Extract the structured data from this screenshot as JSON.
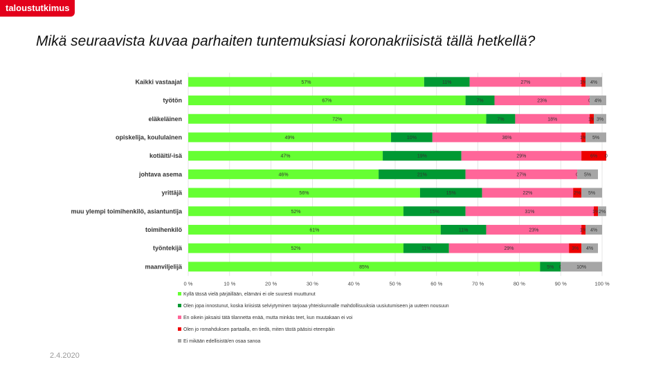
{
  "brand": "taloustutkimus",
  "date": "2.4.2020",
  "chart_data": {
    "type": "bar",
    "orientation": "horizontal",
    "stacked": true,
    "title": "Mikä seuraavista kuvaa parhaiten tuntemuksiasi koronakriisistä tällä hetkellä?",
    "categories": [
      "Kaikki vastaajat",
      "työtön",
      "eläkeläinen",
      "opiskelija, koululainen",
      "kotiäiti/-isä",
      "johtava asema",
      "yrittäjä",
      "muu ylempi toimihenkilö, asiantuntija",
      "toimihenkilö",
      "työntekijä",
      "maanviljelijä"
    ],
    "xlim": [
      0,
      100
    ],
    "xticks": [
      "0 %",
      "10 %",
      "20 %",
      "30 %",
      "40 %",
      "50 %",
      "60 %",
      "70 %",
      "80 %",
      "90 %",
      "100 %"
    ],
    "grid": true,
    "legend_position": "bottom",
    "series": [
      {
        "name": "Kyllä tässä vielä pärjäillään, elämäni ei ole suuresti muuttunut",
        "color": "#66ff33",
        "values": [
          57,
          67,
          72,
          49,
          47,
          46,
          56,
          52,
          61,
          52,
          85
        ],
        "labels": [
          "57%",
          "67%",
          "72%",
          "49%",
          "47%",
          "46%",
          "56%",
          "52%",
          "61%",
          "52%",
          "85%"
        ]
      },
      {
        "name": "Olen jopa innostunut, koska kriisistä selviytyminen tarjoaa yhteiskunnalle mahdollisuuksia uusiutumiseen ja uuteen nousuun",
        "color": "#009933",
        "values": [
          11,
          7,
          7,
          10,
          19,
          21,
          15,
          15,
          11,
          11,
          5
        ],
        "labels": [
          "11%",
          "7%",
          "7%",
          "10%",
          "19%",
          "21%",
          "15%",
          "15%",
          "11%",
          "11%",
          "5%"
        ]
      },
      {
        "name": "En oikein jaksaisi tätä tilannetta enää, mutta minkäs teet, kun muutakaan ei voi",
        "color": "#ff6699",
        "values": [
          27,
          23,
          18,
          36,
          29,
          27,
          22,
          31,
          23,
          29,
          0
        ],
        "labels": [
          "27%",
          "23%",
          "18%",
          "36%",
          "29%",
          "27%",
          "22%",
          "31%",
          "23%",
          "29%",
          "0"
        ]
      },
      {
        "name": "Olen jo romahduksen partaalla, en tiedä, miten tästä pääsisi eteenpäin",
        "color": "#ee0000",
        "values": [
          1,
          0,
          1,
          1,
          6,
          0,
          2,
          1,
          1,
          3,
          0
        ],
        "labels": [
          "1%",
          "0",
          "1%",
          "1%",
          "6%",
          "0",
          "2%",
          "1%",
          "1%",
          "3%",
          "0"
        ]
      },
      {
        "name": "Ei mikään edellisistä/en osaa sanoa",
        "color": "#a6a6a6",
        "values": [
          4,
          4,
          3,
          5,
          0,
          5,
          5,
          2,
          4,
          4,
          10
        ],
        "labels": [
          "4%",
          "4%",
          "3%",
          "5%",
          "0",
          "5%",
          "5%",
          "2%",
          "4%",
          "4%",
          "10%"
        ]
      }
    ]
  }
}
